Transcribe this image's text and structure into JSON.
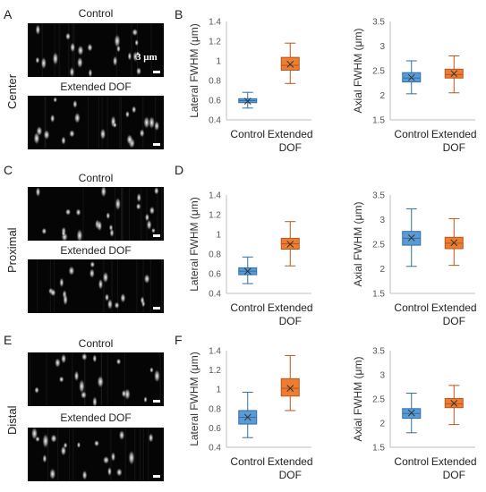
{
  "figure": {
    "rows": [
      {
        "image_letter": "A",
        "chart_letter": "B",
        "side_label": "Center",
        "img_titles": [
          "Control",
          "Extended DOF"
        ],
        "scalebar_label": "3 μm"
      },
      {
        "image_letter": "C",
        "chart_letter": "D",
        "side_label": "Proximal",
        "img_titles": [
          "Control",
          "Extended DOF"
        ],
        "scalebar_label": ""
      },
      {
        "image_letter": "E",
        "chart_letter": "F",
        "side_label": "Distal",
        "img_titles": [
          "Control",
          "Extended DOF"
        ],
        "scalebar_label": ""
      }
    ],
    "colors": {
      "control": "#5b9bd5",
      "extended": "#ed7d31",
      "control_edge": "#2e6fa8",
      "extended_edge": "#b8561a"
    }
  },
  "chart_data": [
    {
      "type": "box",
      "panel": "B",
      "ylabel": "Lateral FWHM (μm)",
      "ylim": [
        0.4,
        1.4
      ],
      "yticks": [
        "0.4",
        "0.6",
        "0.8",
        "1",
        "1.2",
        "1.4"
      ],
      "categories": [
        [
          "Control"
        ],
        [
          "Extended",
          "DOF"
        ]
      ],
      "boxes": [
        {
          "min": 0.52,
          "q1": 0.575,
          "median": 0.595,
          "mean": 0.59,
          "q3": 0.615,
          "max": 0.68
        },
        {
          "min": 0.77,
          "q1": 0.905,
          "median": 0.955,
          "mean": 0.965,
          "q3": 1.035,
          "max": 1.18
        }
      ]
    },
    {
      "type": "box",
      "panel": "B",
      "ylabel": "Axial FWHM (μm)",
      "ylim": [
        1.5,
        3.5
      ],
      "yticks": [
        "1.5",
        "2",
        "2.5",
        "3",
        "3.5"
      ],
      "categories": [
        [
          "Control"
        ],
        [
          "Extended",
          "DOF"
        ]
      ],
      "boxes": [
        {
          "min": 2.03,
          "q1": 2.27,
          "median": 2.35,
          "mean": 2.36,
          "q3": 2.46,
          "max": 2.7
        },
        {
          "min": 2.05,
          "q1": 2.35,
          "median": 2.42,
          "mean": 2.44,
          "q3": 2.53,
          "max": 2.8
        }
      ]
    },
    {
      "type": "box",
      "panel": "D",
      "ylabel": "Lateral FWHM (μm)",
      "ylim": [
        0.4,
        1.4
      ],
      "yticks": [
        "0.4",
        "0.6",
        "0.8",
        "1",
        "1.2",
        "1.4"
      ],
      "categories": [
        [
          "Control"
        ],
        [
          "Extended",
          "DOF"
        ]
      ],
      "boxes": [
        {
          "min": 0.5,
          "q1": 0.59,
          "median": 0.625,
          "mean": 0.625,
          "q3": 0.66,
          "max": 0.77
        },
        {
          "min": 0.68,
          "q1": 0.85,
          "median": 0.905,
          "mean": 0.9,
          "q3": 0.96,
          "max": 1.13
        }
      ]
    },
    {
      "type": "box",
      "panel": "D",
      "ylabel": "Axial FWHM (μm)",
      "ylim": [
        1.5,
        3.5
      ],
      "yticks": [
        "1.5",
        "2",
        "2.5",
        "3",
        "3.5"
      ],
      "categories": [
        [
          "Control"
        ],
        [
          "Extended",
          "DOF"
        ]
      ],
      "boxes": [
        {
          "min": 2.05,
          "q1": 2.48,
          "median": 2.62,
          "mean": 2.63,
          "q3": 2.76,
          "max": 3.22
        },
        {
          "min": 2.07,
          "q1": 2.41,
          "median": 2.52,
          "mean": 2.53,
          "q3": 2.64,
          "max": 3.02
        }
      ]
    },
    {
      "type": "box",
      "panel": "F",
      "ylabel": "Lateral FWHM (μm)",
      "ylim": [
        0.4,
        1.4
      ],
      "yticks": [
        "0.4",
        "0.6",
        "0.8",
        "1",
        "1.2",
        "1.4"
      ],
      "categories": [
        [
          "Control"
        ],
        [
          "Extended",
          "DOF"
        ]
      ],
      "boxes": [
        {
          "min": 0.5,
          "q1": 0.64,
          "median": 0.71,
          "mean": 0.71,
          "q3": 0.78,
          "max": 0.97
        },
        {
          "min": 0.78,
          "q1": 0.93,
          "median": 1.01,
          "mean": 1.01,
          "q3": 1.11,
          "max": 1.35
        }
      ]
    },
    {
      "type": "box",
      "panel": "F",
      "ylabel": "Axial FWHM (μm)",
      "ylim": [
        1.5,
        3.5
      ],
      "yticks": [
        "1.5",
        "2",
        "2.5",
        "3",
        "3.5"
      ],
      "categories": [
        [
          "Control"
        ],
        [
          "Extended",
          "DOF"
        ]
      ],
      "boxes": [
        {
          "min": 1.8,
          "q1": 2.1,
          "median": 2.2,
          "mean": 2.21,
          "q3": 2.3,
          "max": 2.62
        },
        {
          "min": 1.97,
          "q1": 2.32,
          "median": 2.4,
          "mean": 2.41,
          "q3": 2.51,
          "max": 2.78
        }
      ]
    }
  ]
}
